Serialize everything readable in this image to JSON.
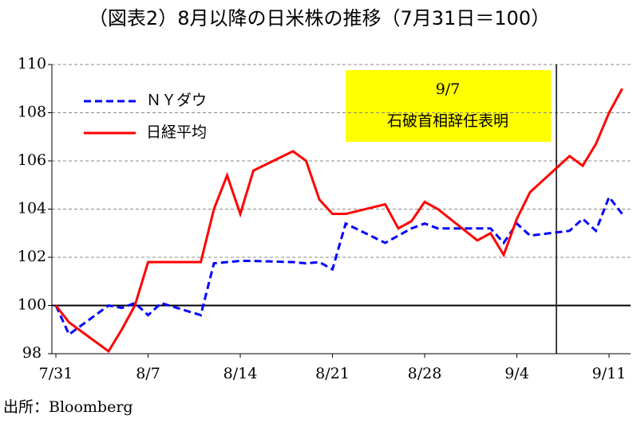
{
  "chart_data": {
    "type": "line",
    "title": "（図表2）8月以降の日米株の推移（7月31日＝100）",
    "source": "出所：Bloomberg",
    "x": [
      "7/31",
      "8/1",
      "8/4",
      "8/5",
      "8/6",
      "8/7",
      "8/8",
      "8/11",
      "8/12",
      "8/13",
      "8/14",
      "8/15",
      "8/18",
      "8/19",
      "8/20",
      "8/21",
      "8/22",
      "8/25",
      "8/26",
      "8/27",
      "8/28",
      "8/29",
      "9/1",
      "9/2",
      "9/3",
      "9/4",
      "9/5",
      "9/8",
      "9/9",
      "9/10",
      "9/11",
      "9/12"
    ],
    "series": [
      {
        "name": "ＮＹダウ",
        "color": "#0000ff",
        "dash": true,
        "values": [
          100,
          98.8,
          100.0,
          99.9,
          100.1,
          99.6,
          100.1,
          99.6,
          101.75,
          101.8,
          101.85,
          101.85,
          101.8,
          101.75,
          101.8,
          101.5,
          103.4,
          102.6,
          102.9,
          103.2,
          103.4,
          103.2,
          103.2,
          103.2,
          102.6,
          103.4,
          102.9,
          103.1,
          103.6,
          103.1,
          104.5,
          103.8
        ]
      },
      {
        "name": "日経平均",
        "color": "#ff0000",
        "dash": false,
        "values": [
          100,
          99.3,
          98.1,
          99.0,
          100.0,
          101.8,
          101.8,
          101.8,
          104.0,
          105.4,
          103.8,
          105.6,
          106.4,
          106.0,
          104.4,
          103.8,
          103.8,
          104.2,
          103.2,
          103.5,
          104.3,
          104.0,
          102.7,
          103.0,
          102.1,
          103.6,
          104.7,
          106.2,
          105.8,
          106.7,
          108.0,
          109.0
        ]
      }
    ],
    "xticks": [
      "7/31",
      "8/7",
      "8/14",
      "8/21",
      "8/28",
      "9/4",
      "9/11"
    ],
    "ylim": [
      98,
      110
    ],
    "yticks": [
      98,
      100,
      102,
      104,
      106,
      108,
      110
    ],
    "grid": true,
    "reference_line": 100,
    "annotation": {
      "date": "9/7",
      "text": "石破首相辞任表明",
      "color": "#ffff00"
    },
    "legend": "upper-left"
  }
}
